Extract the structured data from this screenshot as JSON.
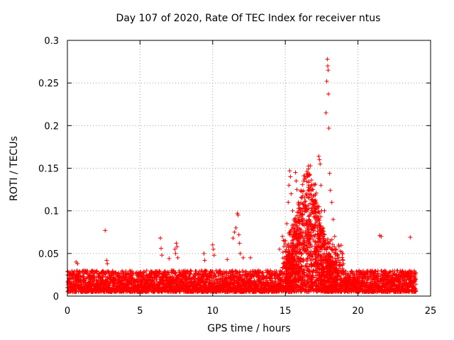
{
  "chart_data": {
    "type": "scatter",
    "title": "Day 107 of 2020, Rate Of TEC Index for receiver ntus",
    "xlabel": "GPS time / hours",
    "ylabel": "ROTI / TECUs",
    "xlim": [
      0,
      25
    ],
    "ylim": [
      0,
      0.3
    ],
    "xticks": [
      0,
      5,
      10,
      15,
      20,
      25
    ],
    "xtick_labels": [
      "0",
      "5",
      "10",
      "15",
      "20",
      "25"
    ],
    "yticks": [
      0,
      0.05,
      0.1,
      0.15,
      0.2,
      0.25,
      0.3
    ],
    "ytick_labels": [
      "0",
      "0.05",
      "0.1",
      "0.15",
      "0.2",
      "0.25",
      "0.3"
    ],
    "grid": true,
    "marker": "+",
    "color": "#ff0000",
    "x_data_range": [
      0,
      24
    ],
    "background_level": {
      "typical": 0.015,
      "range": [
        0.005,
        0.03
      ]
    },
    "series": [
      {
        "name": "ROTI",
        "points": [
          [
            0.6,
            0.04
          ],
          [
            0.7,
            0.038
          ],
          [
            2.6,
            0.077
          ],
          [
            2.7,
            0.042
          ],
          [
            2.75,
            0.038
          ],
          [
            6.4,
            0.068
          ],
          [
            6.45,
            0.056
          ],
          [
            6.5,
            0.048
          ],
          [
            7.0,
            0.044
          ],
          [
            7.4,
            0.055
          ],
          [
            7.45,
            0.05
          ],
          [
            7.5,
            0.062
          ],
          [
            7.55,
            0.058
          ],
          [
            7.6,
            0.045
          ],
          [
            9.4,
            0.05
          ],
          [
            9.45,
            0.042
          ],
          [
            10.0,
            0.06
          ],
          [
            10.05,
            0.055
          ],
          [
            10.1,
            0.048
          ],
          [
            11.0,
            0.043
          ],
          [
            11.4,
            0.068
          ],
          [
            11.5,
            0.075
          ],
          [
            11.6,
            0.08
          ],
          [
            11.7,
            0.097
          ],
          [
            11.75,
            0.095
          ],
          [
            11.8,
            0.072
          ],
          [
            11.85,
            0.062
          ],
          [
            11.9,
            0.05
          ],
          [
            12.1,
            0.045
          ],
          [
            12.6,
            0.045
          ],
          [
            14.6,
            0.055
          ],
          [
            14.8,
            0.07
          ],
          [
            15.0,
            0.065
          ],
          [
            15.1,
            0.085
          ],
          [
            15.2,
            0.11
          ],
          [
            15.25,
            0.13
          ],
          [
            15.3,
            0.147
          ],
          [
            15.35,
            0.14
          ],
          [
            15.4,
            0.12
          ],
          [
            15.5,
            0.1
          ],
          [
            15.6,
            0.09
          ],
          [
            15.7,
            0.145
          ],
          [
            15.75,
            0.135
          ],
          [
            15.8,
            0.125
          ],
          [
            15.9,
            0.11
          ],
          [
            16.0,
            0.1
          ],
          [
            16.1,
            0.095
          ],
          [
            16.2,
            0.09
          ],
          [
            16.3,
            0.085
          ],
          [
            16.4,
            0.1
          ],
          [
            16.5,
            0.12
          ],
          [
            16.6,
            0.115
          ],
          [
            16.7,
            0.12
          ],
          [
            16.8,
            0.118
          ],
          [
            16.9,
            0.11
          ],
          [
            17.0,
            0.105
          ],
          [
            17.1,
            0.09
          ],
          [
            17.2,
            0.08
          ],
          [
            17.3,
            0.164
          ],
          [
            17.35,
            0.16
          ],
          [
            17.4,
            0.155
          ],
          [
            17.45,
            0.13
          ],
          [
            17.5,
            0.1
          ],
          [
            17.6,
            0.08
          ],
          [
            17.7,
            0.1
          ],
          [
            17.8,
            0.215
          ],
          [
            17.85,
            0.252
          ],
          [
            17.9,
            0.278
          ],
          [
            17.92,
            0.27
          ],
          [
            17.95,
            0.265
          ],
          [
            17.97,
            0.237
          ],
          [
            18.0,
            0.197
          ],
          [
            18.05,
            0.144
          ],
          [
            18.1,
            0.124
          ],
          [
            18.2,
            0.11
          ],
          [
            18.3,
            0.09
          ],
          [
            18.4,
            0.07
          ],
          [
            18.5,
            0.055
          ],
          [
            18.7,
            0.045
          ],
          [
            21.5,
            0.071
          ],
          [
            21.6,
            0.07
          ],
          [
            23.6,
            0.069
          ]
        ]
      }
    ]
  }
}
